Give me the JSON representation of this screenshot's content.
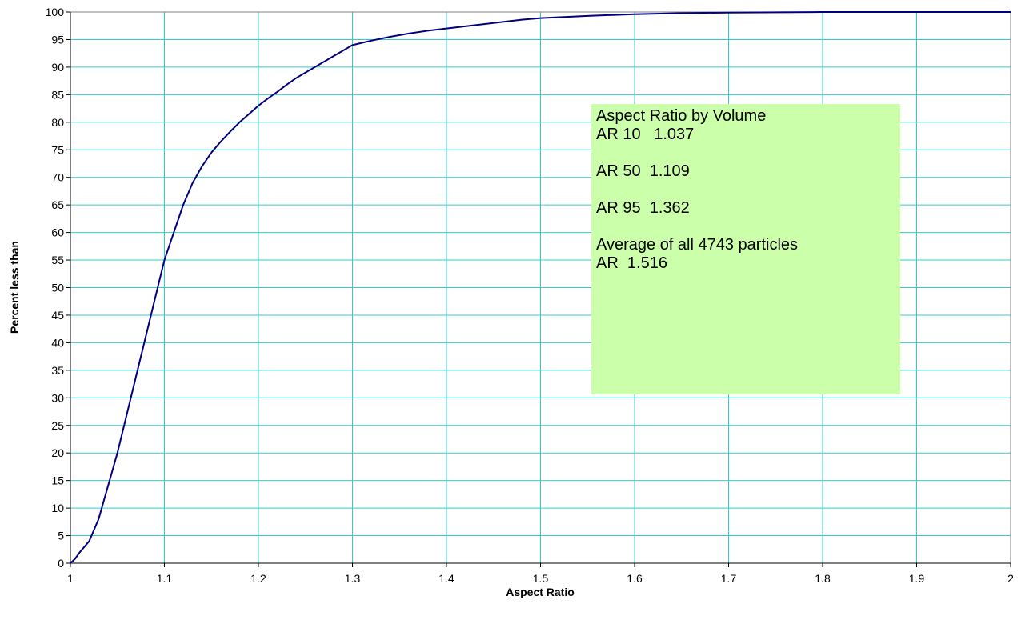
{
  "colors": {
    "background": "#ffffff",
    "grid": "#33cccc",
    "frame": "#808080",
    "series": "#000080",
    "annotation_fill": "#ccffaa"
  },
  "chart_data": {
    "type": "line",
    "title": "",
    "xlabel": "Aspect Ratio",
    "ylabel": "Percent less than",
    "xlim": [
      1,
      2
    ],
    "ylim": [
      0,
      100
    ],
    "xticks": [
      "1",
      "1.1",
      "1.2",
      "1.3",
      "1.4",
      "1.5",
      "1.6",
      "1.7",
      "1.8",
      "1.9",
      "2"
    ],
    "yticks": [
      "0",
      "5",
      "10",
      "15",
      "20",
      "25",
      "30",
      "35",
      "40",
      "45",
      "50",
      "55",
      "60",
      "65",
      "70",
      "75",
      "80",
      "85",
      "90",
      "95",
      "100"
    ],
    "grid": true,
    "legend": "none",
    "series": [
      {
        "x": [
          1.0,
          1.005,
          1.01,
          1.015,
          1.02,
          1.025,
          1.03,
          1.035,
          1.04,
          1.045,
          1.05,
          1.055,
          1.06,
          1.065,
          1.07,
          1.075,
          1.08,
          1.085,
          1.09,
          1.095,
          1.1,
          1.105,
          1.11,
          1.115,
          1.12,
          1.125,
          1.13,
          1.135,
          1.14,
          1.15,
          1.16,
          1.17,
          1.18,
          1.19,
          1.2,
          1.21,
          1.22,
          1.23,
          1.24,
          1.25,
          1.26,
          1.27,
          1.28,
          1.29,
          1.3,
          1.32,
          1.34,
          1.36,
          1.38,
          1.4,
          1.42,
          1.44,
          1.46,
          1.48,
          1.5,
          1.55,
          1.6,
          1.65,
          1.7,
          1.75,
          1.8,
          1.85,
          1.9,
          2.0
        ],
        "y": [
          0,
          0.8,
          2,
          3,
          4,
          6,
          8,
          11,
          14,
          17,
          20,
          23.5,
          27,
          30.5,
          34,
          37.5,
          41,
          44.5,
          48,
          51.5,
          55,
          57.5,
          60,
          62.5,
          65,
          67,
          69,
          70.5,
          72,
          74.5,
          76.5,
          78.3,
          80,
          81.5,
          83,
          84.3,
          85.5,
          86.8,
          88,
          89,
          90,
          91,
          92,
          93,
          94,
          94.8,
          95.5,
          96.1,
          96.6,
          97,
          97.4,
          97.8,
          98.2,
          98.6,
          98.9,
          99.3,
          99.6,
          99.8,
          99.9,
          99.95,
          100,
          100,
          100,
          100
        ]
      }
    ],
    "annotation": {
      "lines": [
        "Aspect Ratio by Volume",
        "AR 10   1.037",
        "",
        "AR 50  1.109",
        "",
        "AR 95  1.362",
        "",
        "Average of all 4743 particles",
        "AR  1.516"
      ]
    }
  }
}
